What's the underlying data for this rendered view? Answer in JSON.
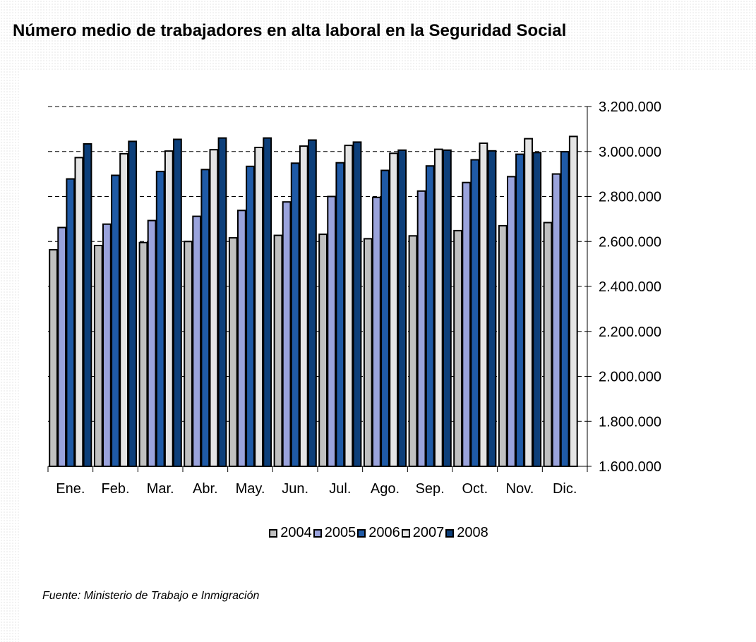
{
  "title": "Número medio de trabajadores en alta laboral en la Seguridad Social",
  "source": "Fuente: Ministerio de Trabajo e Inmigración",
  "chart_data": {
    "type": "bar",
    "title": "Número medio de trabajadores en alta laboral en la Seguridad Social",
    "xlabel": "",
    "ylabel": "",
    "ylim": [
      1600000,
      3200000
    ],
    "y_axis_position": "right",
    "yticks": [
      1600000,
      1800000,
      2000000,
      2200000,
      2400000,
      2600000,
      2800000,
      3000000,
      3200000
    ],
    "ytick_labels": [
      "1.600.000",
      "1.800.000",
      "2.000.000",
      "2.200.000",
      "2.400.000",
      "2.600.000",
      "2.800.000",
      "3.000.000",
      "3.200.000"
    ],
    "grid": "horizontal dashed",
    "legend_position": "bottom",
    "categories": [
      "Ene.",
      "Feb.",
      "Mar.",
      "Abr.",
      "May.",
      "Jun.",
      "Jul.",
      "Ago.",
      "Sep.",
      "Oct.",
      "Nov.",
      "Dic."
    ],
    "series": [
      {
        "name": "2004",
        "color": "#c0c0c0",
        "values": [
          2563000,
          2582000,
          2595000,
          2600000,
          2616000,
          2627000,
          2632000,
          2612000,
          2625000,
          2648000,
          2670000,
          2684000
        ]
      },
      {
        "name": "2005",
        "color": "#9aa3dc",
        "values": [
          2662000,
          2677000,
          2693000,
          2712000,
          2738000,
          2776000,
          2800000,
          2796000,
          2824000,
          2862000,
          2888000,
          2900000
        ]
      },
      {
        "name": "2006",
        "color": "#1f5aa6",
        "values": [
          2878000,
          2894000,
          2911000,
          2920000,
          2934000,
          2948000,
          2950000,
          2916000,
          2936000,
          2963000,
          2988000,
          2999000
        ]
      },
      {
        "name": "2007",
        "color": "#e4e4e4",
        "values": [
          2973000,
          2990000,
          3002000,
          3008000,
          3018000,
          3024000,
          3027000,
          2992000,
          3010000,
          3037000,
          3057000,
          3067000
        ]
      },
      {
        "name": "2008",
        "color": "#0d3f7a",
        "values": [
          3034000,
          3045000,
          3054000,
          3060000,
          3060000,
          3051000,
          3042000,
          3006000,
          3006000,
          3003000,
          2995000,
          null
        ]
      }
    ]
  }
}
